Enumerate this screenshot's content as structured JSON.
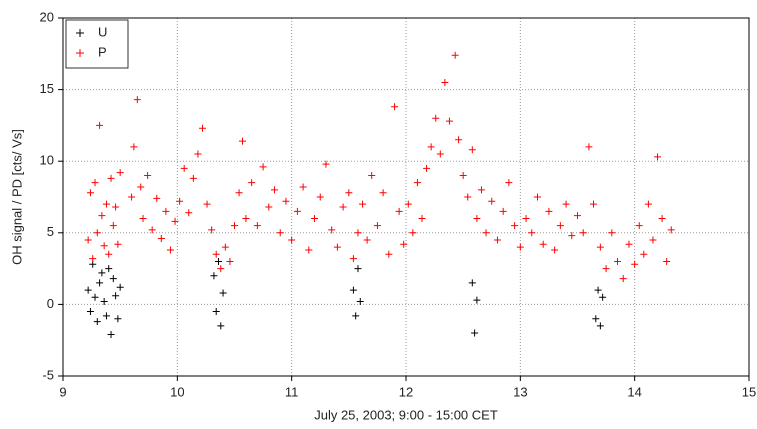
{
  "chart_data": {
    "type": "scatter",
    "x_label": "July 25, 2003; 9:00 - 15:00 CET",
    "y_label": "OH signal / PD [cts/ Vs]",
    "xlim": [
      9,
      15
    ],
    "xticks": [
      9,
      10,
      11,
      12,
      13,
      14,
      15
    ],
    "ylim": [
      -5,
      20
    ],
    "yticks": [
      -5,
      0,
      5,
      10,
      15,
      20
    ],
    "grid": true,
    "legend": "top-left",
    "series": [
      {
        "name": "U",
        "color": "#000000",
        "x": [
          9.22,
          9.24,
          9.26,
          9.28,
          9.3,
          9.32,
          9.34,
          9.36,
          9.38,
          9.4,
          9.42,
          9.44,
          9.46,
          9.48,
          9.5,
          10.32,
          10.34,
          10.36,
          10.38,
          10.4,
          11.54,
          11.56,
          11.58,
          11.6,
          12.58,
          12.6,
          12.62,
          13.66,
          13.68,
          13.7,
          13.72
        ],
        "values": [
          1.0,
          -0.5,
          2.8,
          0.5,
          -1.2,
          1.5,
          2.2,
          0.2,
          -0.8,
          2.5,
          -2.1,
          1.8,
          0.6,
          -1.0,
          1.2,
          2.0,
          -0.5,
          3.0,
          -1.5,
          0.8,
          1.0,
          -0.8,
          2.5,
          0.2,
          1.5,
          -2.0,
          0.3,
          -1.0,
          1.0,
          -1.5,
          0.5
        ]
      },
      {
        "name": "P",
        "color": "#ff0000",
        "x": [
          9.22,
          9.24,
          9.26,
          9.28,
          9.3,
          9.32,
          9.34,
          9.36,
          9.38,
          9.4,
          9.42,
          9.44,
          9.46,
          9.48,
          9.5,
          9.6,
          9.62,
          9.65,
          9.68,
          9.7,
          9.74,
          9.78,
          9.82,
          9.86,
          9.9,
          9.94,
          9.98,
          10.02,
          10.06,
          10.1,
          10.14,
          10.18,
          10.22,
          10.26,
          10.3,
          10.34,
          10.38,
          10.42,
          10.46,
          10.5,
          10.54,
          10.57,
          10.6,
          10.65,
          10.7,
          10.75,
          10.8,
          10.85,
          10.9,
          10.95,
          11.0,
          11.05,
          11.1,
          11.15,
          11.2,
          11.25,
          11.3,
          11.35,
          11.4,
          11.45,
          11.5,
          11.54,
          11.58,
          11.62,
          11.66,
          11.7,
          11.75,
          11.8,
          11.85,
          11.9,
          11.94,
          11.98,
          12.02,
          12.06,
          12.1,
          12.14,
          12.18,
          12.22,
          12.26,
          12.3,
          12.34,
          12.38,
          12.43,
          12.46,
          12.5,
          12.54,
          12.58,
          12.62,
          12.66,
          12.7,
          12.75,
          12.8,
          12.85,
          12.9,
          12.95,
          13.0,
          13.05,
          13.1,
          13.15,
          13.2,
          13.25,
          13.3,
          13.35,
          13.4,
          13.45,
          13.5,
          13.55,
          13.6,
          13.64,
          13.7,
          13.75,
          13.8,
          13.85,
          13.9,
          13.95,
          14.0,
          14.04,
          14.08,
          14.12,
          14.16,
          14.2,
          14.24,
          14.28,
          14.32
        ],
        "values": [
          4.5,
          7.8,
          3.2,
          8.5,
          5.0,
          12.5,
          6.2,
          4.1,
          7.0,
          3.5,
          8.8,
          5.5,
          6.8,
          4.2,
          9.2,
          7.5,
          11.0,
          14.3,
          8.2,
          6.0,
          9.0,
          5.2,
          7.4,
          4.6,
          6.5,
          3.8,
          5.8,
          7.2,
          9.5,
          6.4,
          8.8,
          10.5,
          12.3,
          7.0,
          5.2,
          3.5,
          2.5,
          4.0,
          3.0,
          5.5,
          7.8,
          11.4,
          6.0,
          8.5,
          5.5,
          9.6,
          6.8,
          8.0,
          5.0,
          7.2,
          4.5,
          6.5,
          8.2,
          3.8,
          6.0,
          7.5,
          9.8,
          5.2,
          4.0,
          6.8,
          7.8,
          3.2,
          5.0,
          7.0,
          4.5,
          9.0,
          5.5,
          7.8,
          3.5,
          13.8,
          6.5,
          4.2,
          7.0,
          5.0,
          8.5,
          6.0,
          9.5,
          11.0,
          13.0,
          10.5,
          15.5,
          12.8,
          17.4,
          11.5,
          9.0,
          7.5,
          10.8,
          6.0,
          8.0,
          5.0,
          7.2,
          4.5,
          6.5,
          8.5,
          5.5,
          4.0,
          6.0,
          5.0,
          7.5,
          4.2,
          6.5,
          3.8,
          5.5,
          7.0,
          4.8,
          6.2,
          5.0,
          11.0,
          7.0,
          4.0,
          2.5,
          5.0,
          3.0,
          1.8,
          4.2,
          2.8,
          5.5,
          3.5,
          7.0,
          4.5,
          10.3,
          6.0,
          3.0,
          5.2
        ]
      }
    ]
  }
}
